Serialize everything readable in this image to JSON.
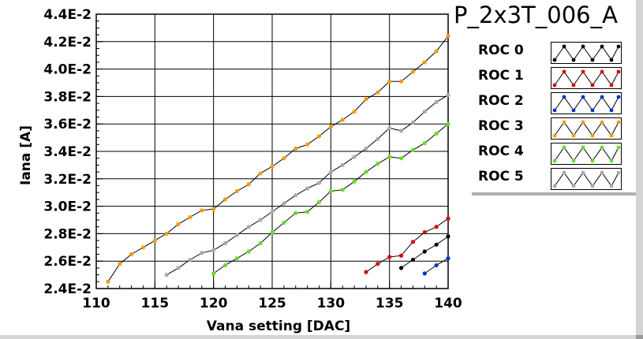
{
  "title": "P_2x3T_006_A",
  "chart_data": {
    "type": "line",
    "xlabel": "Vana setting [DAC]",
    "ylabel": "Iana [A]",
    "xlim": [
      110,
      140
    ],
    "ylim": [
      0.024,
      0.044
    ],
    "x_ticks": [
      110,
      115,
      120,
      125,
      130,
      135,
      140
    ],
    "x_tick_labels": [
      "110",
      "115",
      "120",
      "125",
      "130",
      "135",
      "140"
    ],
    "y_ticks": [
      0.024,
      0.026,
      0.028,
      0.03,
      0.032,
      0.034,
      0.036,
      0.038,
      0.04,
      0.042,
      0.044
    ],
    "y_tick_labels": [
      "2.4E-2",
      "2.6E-2",
      "2.8E-2",
      "3.0E-2",
      "3.2E-2",
      "3.4E-2",
      "3.6E-2",
      "3.8E-2",
      "4.0E-2",
      "4.2E-2",
      "4.4E-2"
    ],
    "grid": true,
    "legend_position": "right",
    "series": [
      {
        "name": "ROC 0",
        "color": "#000000",
        "x": [
          136,
          137,
          138,
          139,
          140
        ],
        "y": [
          0.0255,
          0.0261,
          0.0267,
          0.0272,
          0.0278
        ]
      },
      {
        "name": "ROC 1",
        "color": "#dd0000",
        "x": [
          133,
          134,
          135,
          136,
          137,
          138,
          139,
          140
        ],
        "y": [
          0.0252,
          0.0258,
          0.0263,
          0.0264,
          0.0274,
          0.0281,
          0.0285,
          0.0291
        ]
      },
      {
        "name": "ROC 2",
        "color": "#0033cc",
        "x": [
          138,
          139,
          140
        ],
        "y": [
          0.0251,
          0.0257,
          0.0262
        ]
      },
      {
        "name": "ROC 3",
        "color": "#ff9900",
        "x": [
          111,
          112,
          113,
          114,
          115,
          116,
          117,
          118,
          119,
          120,
          121,
          122,
          123,
          124,
          125,
          126,
          127,
          128,
          129,
          130,
          131,
          132,
          133,
          134,
          135,
          136,
          137,
          138,
          139,
          140
        ],
        "y": [
          0.0245,
          0.0258,
          0.0265,
          0.027,
          0.0275,
          0.028,
          0.0287,
          0.0292,
          0.0297,
          0.0298,
          0.0305,
          0.0311,
          0.0316,
          0.0324,
          0.0329,
          0.0335,
          0.0342,
          0.0345,
          0.0351,
          0.0358,
          0.0363,
          0.0369,
          0.0378,
          0.0383,
          0.0391,
          0.0391,
          0.0398,
          0.0405,
          0.0413,
          0.0424
        ]
      },
      {
        "name": "ROC 4",
        "color": "#66dd22",
        "x": [
          120,
          121,
          122,
          123,
          124,
          125,
          126,
          127,
          128,
          129,
          130,
          131,
          132,
          133,
          134,
          135,
          136,
          137,
          138,
          139,
          140
        ],
        "y": [
          0.0251,
          0.0257,
          0.0262,
          0.0267,
          0.0273,
          0.0281,
          0.0288,
          0.0295,
          0.0296,
          0.0303,
          0.0311,
          0.0312,
          0.0318,
          0.0325,
          0.0331,
          0.0336,
          0.0335,
          0.0341,
          0.0346,
          0.0353,
          0.036
        ]
      },
      {
        "name": "ROC 5",
        "color": "#aaaaaa",
        "x": [
          116,
          117,
          118,
          119,
          120,
          121,
          122,
          123,
          124,
          125,
          126,
          127,
          128,
          129,
          130,
          131,
          132,
          133,
          134,
          135,
          136,
          137,
          138,
          139,
          140
        ],
        "y": [
          0.025,
          0.0255,
          0.0261,
          0.0266,
          0.0268,
          0.0273,
          0.0279,
          0.0285,
          0.029,
          0.0296,
          0.0302,
          0.0308,
          0.0313,
          0.0317,
          0.0325,
          0.033,
          0.0336,
          0.0342,
          0.0349,
          0.0357,
          0.0355,
          0.0361,
          0.0369,
          0.0376,
          0.0381
        ]
      }
    ]
  },
  "legend": {
    "items": [
      {
        "label": "ROC 0",
        "color": "#000000",
        "icon": "zigzag-line-swatch"
      },
      {
        "label": "ROC 1",
        "color": "#dd0000",
        "icon": "zigzag-line-swatch"
      },
      {
        "label": "ROC 2",
        "color": "#0033cc",
        "icon": "zigzag-line-swatch"
      },
      {
        "label": "ROC 3",
        "color": "#ff9900",
        "icon": "zigzag-line-swatch"
      },
      {
        "label": "ROC 4",
        "color": "#66dd22",
        "icon": "zigzag-line-swatch"
      },
      {
        "label": "ROC 5",
        "color": "#aaaaaa",
        "icon": "zigzag-line-swatch"
      }
    ]
  }
}
